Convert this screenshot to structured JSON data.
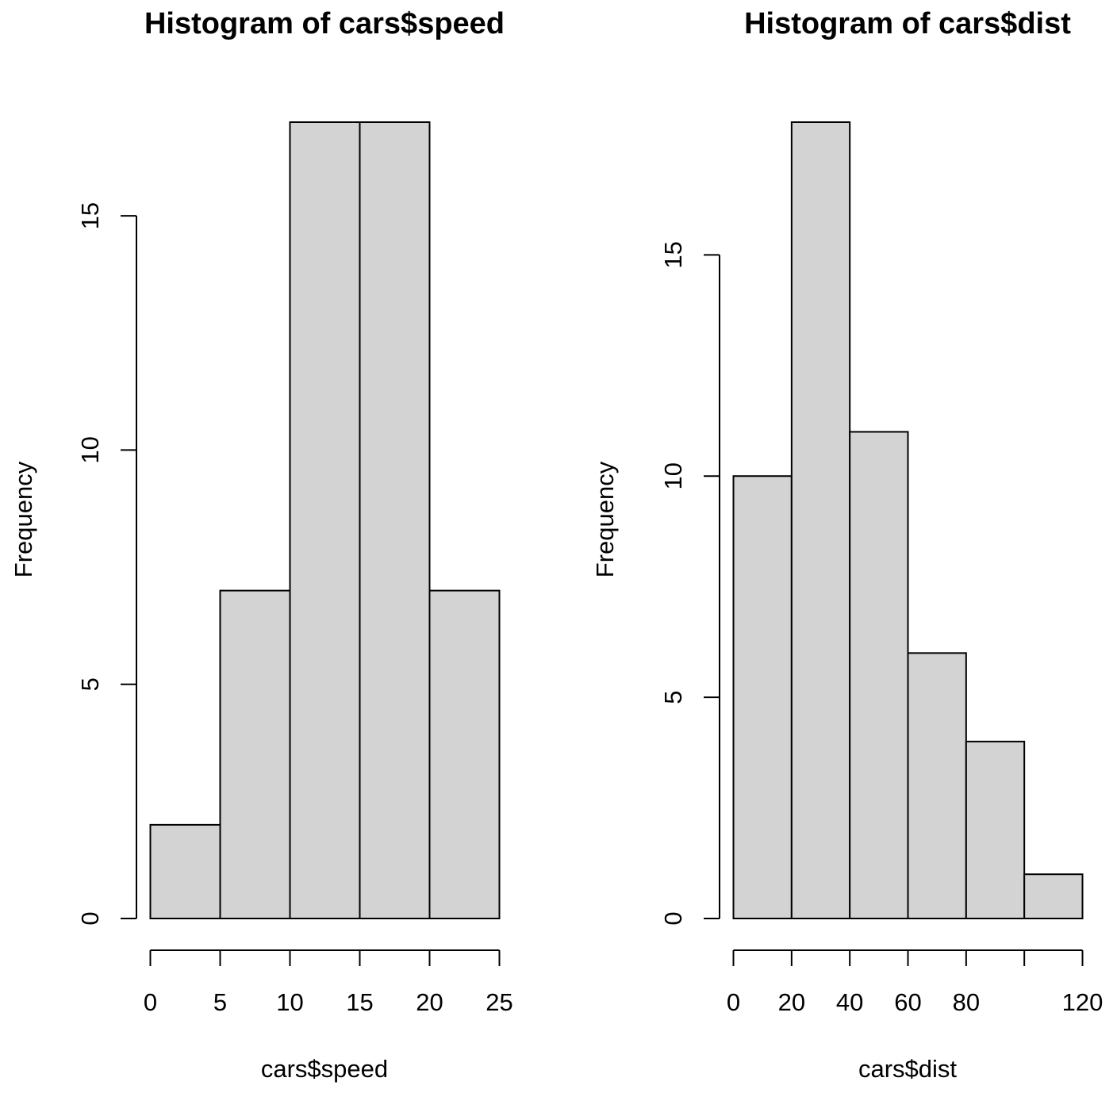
{
  "chart_data": [
    {
      "type": "bar",
      "title": "Histogram of cars$speed",
      "xlabel": "cars$speed",
      "ylabel": "Frequency",
      "bins": [
        [
          0,
          5
        ],
        [
          5,
          10
        ],
        [
          10,
          15
        ],
        [
          15,
          20
        ],
        [
          20,
          25
        ]
      ],
      "values": [
        2,
        7,
        17,
        17,
        7
      ],
      "xlim": [
        0,
        25
      ],
      "ylim": [
        0,
        17
      ],
      "x_ticks": [
        0,
        5,
        10,
        15,
        20,
        25
      ],
      "x_tick_labels": [
        "0",
        "5",
        "10",
        "15",
        "20",
        "25"
      ],
      "y_ticks": [
        0,
        5,
        10,
        15
      ],
      "y_tick_labels": [
        "0",
        "5",
        "10",
        "15"
      ],
      "grid": false,
      "bar_color": "#d3d3d3"
    },
    {
      "type": "bar",
      "title": "Histogram of cars$dist",
      "xlabel": "cars$dist",
      "ylabel": "Frequency",
      "bins": [
        [
          0,
          20
        ],
        [
          20,
          40
        ],
        [
          40,
          60
        ],
        [
          60,
          80
        ],
        [
          80,
          100
        ],
        [
          100,
          120
        ]
      ],
      "values": [
        10,
        18,
        11,
        6,
        4,
        1
      ],
      "xlim": [
        0,
        120
      ],
      "ylim": [
        0,
        18
      ],
      "x_ticks": [
        0,
        20,
        40,
        60,
        80,
        100,
        120
      ],
      "x_tick_labels": [
        "0",
        "20",
        "40",
        "60",
        "80",
        "",
        "120"
      ],
      "y_ticks": [
        0,
        5,
        10,
        15
      ],
      "y_tick_labels": [
        "0",
        "5",
        "10",
        "15"
      ],
      "grid": false,
      "bar_color": "#d3d3d3"
    }
  ]
}
